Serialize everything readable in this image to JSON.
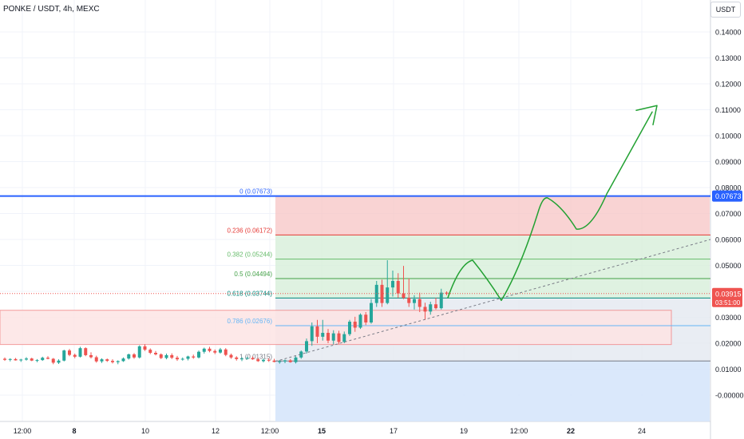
{
  "header": {
    "title": "PONKE / USDT, 4h, MEXC",
    "unit": "USDT"
  },
  "colors": {
    "up": "#26a69a",
    "down": "#ef5350",
    "fib_line_blue": "#2962ff",
    "zone_red": "#f7c4c4",
    "zone_green": "#d7efd9",
    "zone_blue": "#d6e6fb",
    "arrow_green": "#22a132",
    "price_badge": "#ef5350",
    "last_badge_blue": "#2962ff"
  },
  "chart_data": {
    "type": "candlestick",
    "symbol": "PONKE / USDT",
    "timeframe": "4h",
    "exchange": "MEXC",
    "y_axis": {
      "ticks": [
        "0.14000",
        "0.13000",
        "0.12000",
        "0.11000",
        "0.10000",
        "0.09000",
        "0.08000",
        "0.07000",
        "0.06000",
        "0.05000",
        "0.04000",
        "0.03000",
        "0.02000",
        "0.01000",
        "-0.00000"
      ],
      "range": [
        -0.012,
        0.154
      ]
    },
    "x_axis": {
      "ticks": [
        "12:00",
        "8",
        "10",
        "12",
        "12:00",
        "15",
        "17",
        "19",
        "12:00",
        "22",
        "24"
      ],
      "bold": [
        "8",
        "15",
        "22"
      ]
    },
    "current_price": {
      "value": "0.03915",
      "countdown": "03:51:00"
    },
    "fib_high_badge": "0.07673",
    "fib_levels": [
      {
        "ratio": "0",
        "value": 0.07673,
        "label": "0 (0.07673)",
        "color": "#2962ff"
      },
      {
        "ratio": "0.236",
        "value": 0.06172,
        "label": "0.236 (0.06172)",
        "color": "#e53935"
      },
      {
        "ratio": "0.382",
        "value": 0.05244,
        "label": "0.382 (0.05244)",
        "color": "#66bb6a"
      },
      {
        "ratio": "0.5",
        "value": 0.04494,
        "label": "0.5 (0.04494)",
        "color": "#43a047"
      },
      {
        "ratio": "0.618",
        "value": 0.03744,
        "label": "0.618 (0.03744)",
        "color": "#00897b"
      },
      {
        "ratio": "0.786",
        "value": 0.02676,
        "label": "0.786 (0.02676)",
        "color": "#64b5f6"
      },
      {
        "ratio": "1",
        "value": 0.01315,
        "label": "1 (0.01315)",
        "color": "#787b86"
      }
    ],
    "candles": [
      [
        0.014,
        0.0145,
        0.0132,
        0.0136
      ],
      [
        0.0136,
        0.0142,
        0.013,
        0.0139
      ],
      [
        0.0139,
        0.0143,
        0.0133,
        0.0134
      ],
      [
        0.0134,
        0.014,
        0.0128,
        0.0137
      ],
      [
        0.0137,
        0.0146,
        0.0133,
        0.0141
      ],
      [
        0.0141,
        0.0144,
        0.0131,
        0.0133
      ],
      [
        0.0133,
        0.0139,
        0.0127,
        0.0135
      ],
      [
        0.0135,
        0.0148,
        0.0132,
        0.0144
      ],
      [
        0.0144,
        0.015,
        0.0138,
        0.014
      ],
      [
        0.014,
        0.0143,
        0.0119,
        0.0125
      ],
      [
        0.0125,
        0.0138,
        0.012,
        0.0133
      ],
      [
        0.0133,
        0.0175,
        0.013,
        0.0172
      ],
      [
        0.0172,
        0.0178,
        0.015,
        0.0155
      ],
      [
        0.0155,
        0.016,
        0.0142,
        0.0148
      ],
      [
        0.0148,
        0.0186,
        0.0145,
        0.0181
      ],
      [
        0.0181,
        0.0184,
        0.015,
        0.0154
      ],
      [
        0.0154,
        0.0165,
        0.0141,
        0.0146
      ],
      [
        0.0146,
        0.0152,
        0.0125,
        0.013
      ],
      [
        0.013,
        0.0142,
        0.0124,
        0.0138
      ],
      [
        0.0138,
        0.0141,
        0.0128,
        0.0132
      ],
      [
        0.0132,
        0.0138,
        0.0122,
        0.0127
      ],
      [
        0.0127,
        0.0134,
        0.0119,
        0.0131
      ],
      [
        0.0131,
        0.0145,
        0.0128,
        0.0141
      ],
      [
        0.0141,
        0.016,
        0.0137,
        0.0157
      ],
      [
        0.0157,
        0.0162,
        0.014,
        0.0145
      ],
      [
        0.0145,
        0.0192,
        0.0141,
        0.0188
      ],
      [
        0.0188,
        0.0196,
        0.017,
        0.0175
      ],
      [
        0.0175,
        0.018,
        0.0158,
        0.0163
      ],
      [
        0.0163,
        0.017,
        0.0153,
        0.0157
      ],
      [
        0.0157,
        0.0161,
        0.0139,
        0.0143
      ],
      [
        0.0143,
        0.016,
        0.0138,
        0.0154
      ],
      [
        0.0154,
        0.0161,
        0.0139,
        0.0144
      ],
      [
        0.0144,
        0.0151,
        0.0132,
        0.0138
      ],
      [
        0.0138,
        0.0145,
        0.0133,
        0.014
      ],
      [
        0.014,
        0.0152,
        0.0134,
        0.0149
      ],
      [
        0.0149,
        0.0156,
        0.014,
        0.0145
      ],
      [
        0.0145,
        0.0172,
        0.0141,
        0.0167
      ],
      [
        0.0167,
        0.0183,
        0.016,
        0.0179
      ],
      [
        0.0179,
        0.0186,
        0.0165,
        0.017
      ],
      [
        0.017,
        0.0176,
        0.0158,
        0.0164
      ],
      [
        0.0164,
        0.0182,
        0.016,
        0.0176
      ],
      [
        0.0176,
        0.0181,
        0.015,
        0.0155
      ],
      [
        0.0155,
        0.016,
        0.014,
        0.0145
      ],
      [
        0.0145,
        0.015,
        0.0133,
        0.0139
      ],
      [
        0.0139,
        0.0146,
        0.0131,
        0.0141
      ],
      [
        0.0141,
        0.0148,
        0.0137,
        0.0143
      ],
      [
        0.0143,
        0.0149,
        0.0136,
        0.0138
      ],
      [
        0.0138,
        0.0144,
        0.0128,
        0.0131
      ],
      [
        0.0131,
        0.014,
        0.0126,
        0.0136
      ],
      [
        0.0136,
        0.0142,
        0.0128,
        0.0133
      ],
      [
        0.0133,
        0.014,
        0.0126,
        0.0128
      ],
      [
        0.0128,
        0.0135,
        0.0121,
        0.013
      ],
      [
        0.013,
        0.0137,
        0.0123,
        0.0134
      ],
      [
        0.0134,
        0.0139,
        0.0125,
        0.0127
      ],
      [
        0.0127,
        0.015,
        0.0122,
        0.0145
      ],
      [
        0.0145,
        0.0172,
        0.014,
        0.0168
      ],
      [
        0.0168,
        0.0218,
        0.016,
        0.0208
      ],
      [
        0.0208,
        0.028,
        0.019,
        0.0265
      ],
      [
        0.0265,
        0.029,
        0.02,
        0.0225
      ],
      [
        0.0225,
        0.029,
        0.021,
        0.024
      ],
      [
        0.024,
        0.0255,
        0.02,
        0.021
      ],
      [
        0.021,
        0.025,
        0.0195,
        0.0238
      ],
      [
        0.0238,
        0.0248,
        0.0196,
        0.0205
      ],
      [
        0.0205,
        0.0245,
        0.02,
        0.0235
      ],
      [
        0.0235,
        0.029,
        0.0228,
        0.0283
      ],
      [
        0.0283,
        0.0302,
        0.0244,
        0.026
      ],
      [
        0.026,
        0.0315,
        0.0255,
        0.031
      ],
      [
        0.031,
        0.032,
        0.027,
        0.028
      ],
      [
        0.028,
        0.037,
        0.0275,
        0.0355
      ],
      [
        0.0355,
        0.044,
        0.034,
        0.0425
      ],
      [
        0.0425,
        0.0445,
        0.034,
        0.0355
      ],
      [
        0.0355,
        0.052,
        0.035,
        0.0415
      ],
      [
        0.0415,
        0.048,
        0.038,
        0.044
      ],
      [
        0.044,
        0.047,
        0.0375,
        0.0392
      ],
      [
        0.0392,
        0.0498,
        0.037,
        0.0375
      ],
      [
        0.0375,
        0.045,
        0.034,
        0.0355
      ],
      [
        0.0355,
        0.0385,
        0.033,
        0.037
      ],
      [
        0.037,
        0.0395,
        0.032,
        0.034
      ],
      [
        0.034,
        0.0356,
        0.029,
        0.0322
      ],
      [
        0.0322,
        0.036,
        0.031,
        0.035
      ],
      [
        0.035,
        0.0375,
        0.033,
        0.0335
      ],
      [
        0.0335,
        0.041,
        0.033,
        0.0395
      ],
      [
        0.0395,
        0.04,
        0.0385,
        0.0392
      ]
    ],
    "annotations": {
      "projection_path_prices": [
        0.0375,
        0.052,
        0.0365,
        0.076,
        0.064,
        0.111
      ],
      "trendline": {
        "from": 0.013,
        "to": 0.06
      }
    }
  }
}
